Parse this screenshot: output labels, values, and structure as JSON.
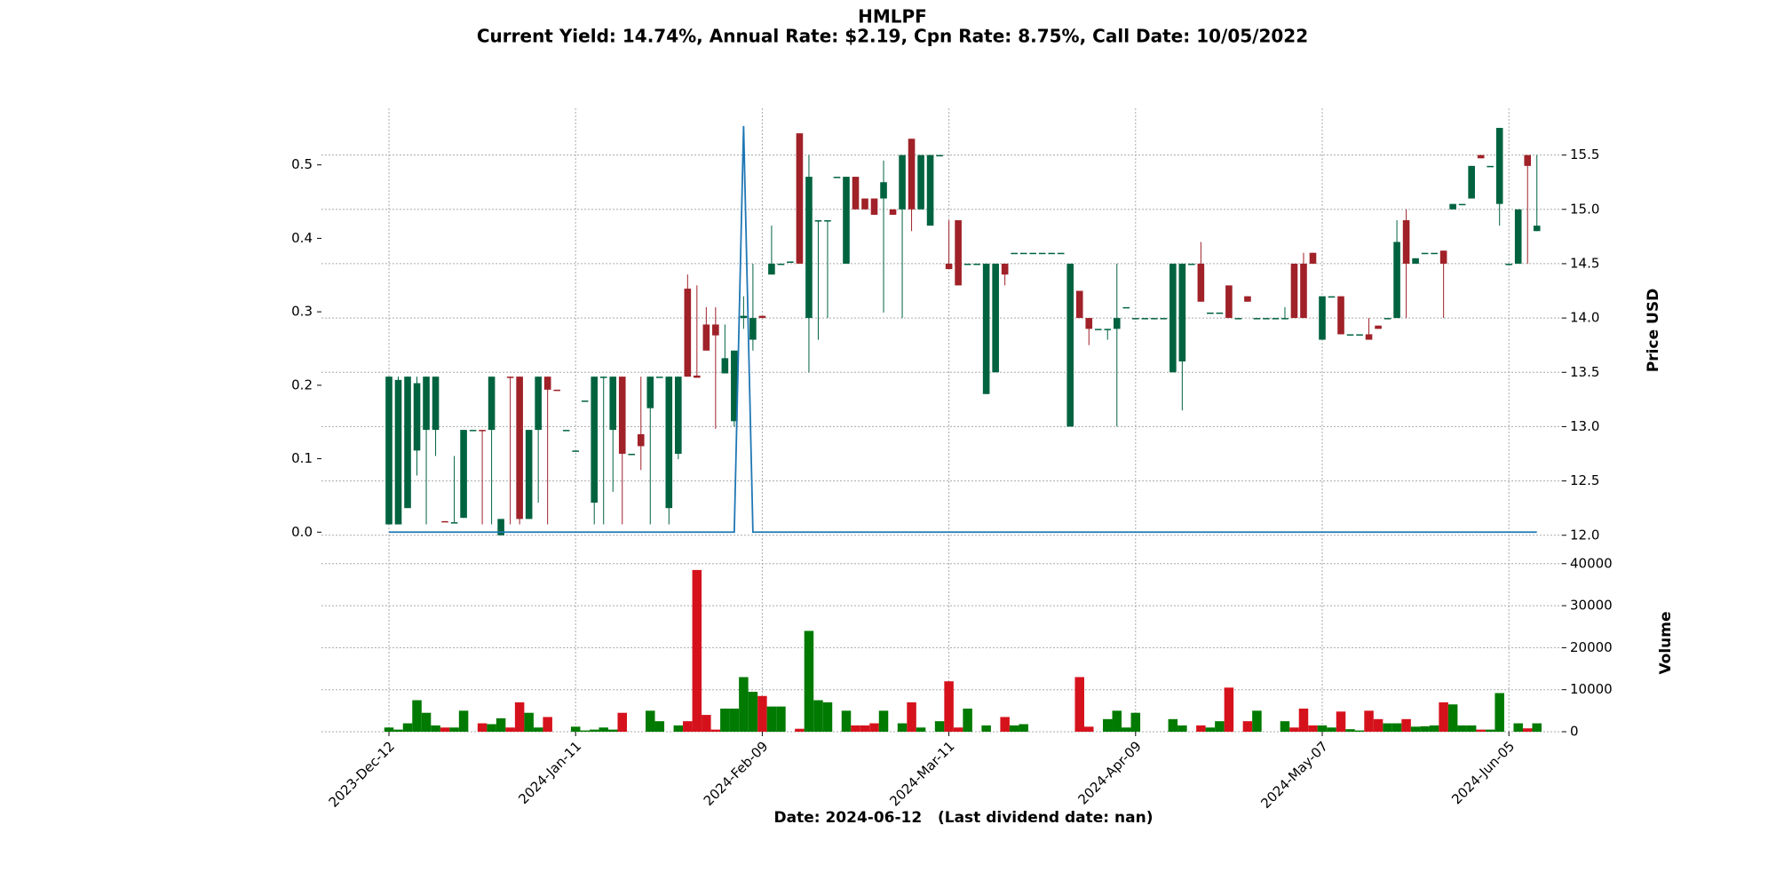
{
  "chart_data": {
    "type": "candlestick",
    "title": "HMLPF",
    "subtitle": "Current Yield: 14.74%, Annual Rate: $2.19, Cpn Rate: 8.75%, Call Date: 10/05/2022",
    "xlabel": "Date: 2024-06-12   (Last dividend date: nan)",
    "ylabel": "Price USD",
    "grid": true,
    "up_color": "#006340",
    "down_color": "#a02128",
    "categories": [
      "2023-Dec-12",
      null,
      null,
      null,
      null,
      null,
      null,
      null,
      null,
      null,
      null,
      null,
      null,
      null,
      null,
      null,
      null,
      null,
      null,
      null,
      "2024-Jan-11",
      null,
      null,
      null,
      null,
      null,
      null,
      null,
      null,
      null,
      null,
      null,
      null,
      null,
      null,
      null,
      null,
      null,
      null,
      null,
      "2024-Feb-09",
      null,
      null,
      null,
      null,
      null,
      null,
      null,
      null,
      null,
      null,
      null,
      null,
      null,
      null,
      null,
      null,
      null,
      null,
      null,
      "2024-Mar-11",
      null,
      null,
      null,
      null,
      null,
      null,
      null,
      null,
      null,
      null,
      null,
      null,
      null,
      null,
      null,
      null,
      null,
      null,
      null,
      "2024-Apr-09",
      null,
      null,
      null,
      null,
      null,
      null,
      null,
      null,
      null,
      null,
      null,
      null,
      null,
      null,
      null,
      null,
      null,
      null,
      null,
      "2024-May-07",
      null,
      null,
      null,
      null,
      null,
      null,
      null,
      null,
      null,
      null,
      null,
      null,
      null,
      null,
      null,
      null,
      null,
      null,
      null,
      "2024-Jun-05",
      null,
      null,
      null
    ],
    "open": [
      12.1,
      12.1,
      12.25,
      12.78,
      12.97,
      12.97,
      12.13,
      12.12,
      12.16,
      12.97,
      12.97,
      12.97,
      12.0,
      13.46,
      13.46,
      12.15,
      12.97,
      13.46,
      13.34,
      12.97,
      12.78,
      13.24,
      12.3,
      13.46,
      12.97,
      13.46,
      12.75,
      12.93,
      13.17,
      13.46,
      12.25,
      12.75,
      14.27,
      13.47,
      13.94,
      13.94,
      13.49,
      13.05,
      14.0,
      13.8,
      14.02,
      14.4,
      14.5,
      14.52,
      15.7,
      14.0,
      14.9,
      14.9,
      15.3,
      14.5,
      15.3,
      15.1,
      15.1,
      15.1,
      15.0,
      15.0,
      15.65,
      15.0,
      14.85,
      15.5,
      14.5,
      14.9,
      14.5,
      14.5,
      13.3,
      13.5,
      14.5,
      14.6,
      14.6,
      14.6,
      14.6,
      14.6,
      14.6,
      13.0,
      14.25,
      14.0,
      13.9,
      13.9,
      13.9,
      14.1,
      14.0,
      14.0,
      14.0,
      14.0,
      13.5,
      13.6,
      14.5,
      14.5,
      14.05,
      14.05,
      14.3,
      14.0,
      14.2,
      14.0,
      14.0,
      14.0,
      14.0,
      14.5,
      14.5,
      14.6,
      13.8,
      14.2,
      14.2,
      13.85,
      13.85,
      13.85,
      13.93,
      14.0,
      14.0,
      14.9,
      14.5,
      14.6,
      14.6,
      14.62,
      15.0,
      15.05,
      15.1,
      15.5,
      15.4,
      15.05,
      14.5,
      14.5,
      15.5,
      14.8
    ],
    "high": [
      13.46,
      13.46,
      13.46,
      13.46,
      13.46,
      13.46,
      12.13,
      12.73,
      12.97,
      12.97,
      12.97,
      13.46,
      12.15,
      13.46,
      13.46,
      12.97,
      13.46,
      13.46,
      13.34,
      12.97,
      12.78,
      13.24,
      13.46,
      13.46,
      13.46,
      13.46,
      12.75,
      13.46,
      13.46,
      13.46,
      13.46,
      13.46,
      14.4,
      14.3,
      14.1,
      14.1,
      13.94,
      13.7,
      14.2,
      14.5,
      14.02,
      14.85,
      14.5,
      14.52,
      15.7,
      15.5,
      14.9,
      14.9,
      15.3,
      15.3,
      15.3,
      15.1,
      15.1,
      15.45,
      15.0,
      15.5,
      15.65,
      15.5,
      15.5,
      15.5,
      14.9,
      14.9,
      14.5,
      14.5,
      14.5,
      14.5,
      14.5,
      14.6,
      14.6,
      14.6,
      14.6,
      14.6,
      14.6,
      14.5,
      14.25,
      14.0,
      13.9,
      13.9,
      14.5,
      14.1,
      14.0,
      14.0,
      14.0,
      14.0,
      14.5,
      14.5,
      14.5,
      14.7,
      14.05,
      14.05,
      14.3,
      14.0,
      14.2,
      14.0,
      14.0,
      14.0,
      14.1,
      14.5,
      14.6,
      14.6,
      14.2,
      14.2,
      14.2,
      13.85,
      13.85,
      14.0,
      13.93,
      14.0,
      14.9,
      15.0,
      14.55,
      14.6,
      14.6,
      14.62,
      15.05,
      15.05,
      15.4,
      15.5,
      15.4,
      15.75,
      14.5,
      15.0,
      15.5,
      15.5
    ],
    "low": [
      12.1,
      12.1,
      12.25,
      12.55,
      12.1,
      12.73,
      12.12,
      12.12,
      12.16,
      12.97,
      12.1,
      12.1,
      12.0,
      12.1,
      12.1,
      12.15,
      12.3,
      12.1,
      13.33,
      12.97,
      12.78,
      13.24,
      12.1,
      12.1,
      12.4,
      12.1,
      12.75,
      12.6,
      12.1,
      13.46,
      12.1,
      12.7,
      13.46,
      13.45,
      13.7,
      12.98,
      13.49,
      13.0,
      13.9,
      13.7,
      14.0,
      14.4,
      14.5,
      14.52,
      14.5,
      13.5,
      13.8,
      14.0,
      15.3,
      14.5,
      15.0,
      15.0,
      14.95,
      14.05,
      14.95,
      14.0,
      14.8,
      15.0,
      14.85,
      15.5,
      14.45,
      14.3,
      14.5,
      14.5,
      13.3,
      13.5,
      14.3,
      14.6,
      14.6,
      14.6,
      14.6,
      14.6,
      14.6,
      13.0,
      14.0,
      13.75,
      13.9,
      13.8,
      13.0,
      14.1,
      14.0,
      14.0,
      14.0,
      14.0,
      13.5,
      13.15,
      14.5,
      14.15,
      14.05,
      14.05,
      14.0,
      14.0,
      14.15,
      14.0,
      14.0,
      14.0,
      14.0,
      14.0,
      14.0,
      14.5,
      13.8,
      14.2,
      13.85,
      13.85,
      13.85,
      13.8,
      13.9,
      14.0,
      14.0,
      14.0,
      14.5,
      14.6,
      14.6,
      14.0,
      15.0,
      15.05,
      15.1,
      15.47,
      15.4,
      14.85,
      14.5,
      14.5,
      14.5,
      14.8
    ],
    "close": [
      13.46,
      13.43,
      13.46,
      13.4,
      13.46,
      13.46,
      12.12,
      12.12,
      12.97,
      12.97,
      12.96,
      13.46,
      12.15,
      13.45,
      12.15,
      12.97,
      13.46,
      13.34,
      13.33,
      12.97,
      12.78,
      13.24,
      13.46,
      13.46,
      13.46,
      12.75,
      12.75,
      12.82,
      13.46,
      13.46,
      13.46,
      13.46,
      13.46,
      13.45,
      13.7,
      13.84,
      13.63,
      13.7,
      14.02,
      14.0,
      14.0,
      14.5,
      14.5,
      14.52,
      14.5,
      15.3,
      14.9,
      14.9,
      15.3,
      15.3,
      15.0,
      15.0,
      14.95,
      15.25,
      14.95,
      15.5,
      15.0,
      15.5,
      15.5,
      15.5,
      14.45,
      14.3,
      14.5,
      14.5,
      14.5,
      14.5,
      14.4,
      14.6,
      14.6,
      14.6,
      14.6,
      14.6,
      14.6,
      14.5,
      14.0,
      13.9,
      13.9,
      13.9,
      14.0,
      14.1,
      14.0,
      14.0,
      14.0,
      14.0,
      14.5,
      14.5,
      14.5,
      14.15,
      14.05,
      14.05,
      14.0,
      14.0,
      14.15,
      14.0,
      14.0,
      14.0,
      14.0,
      14.0,
      14.0,
      14.5,
      14.2,
      14.2,
      13.85,
      13.85,
      13.85,
      13.8,
      13.9,
      14.0,
      14.7,
      14.5,
      14.55,
      14.6,
      14.6,
      14.5,
      15.05,
      15.05,
      15.4,
      15.47,
      15.4,
      15.75,
      14.5,
      15.0,
      15.4,
      14.85
    ],
    "ylim": [
      11.9,
      15.93
    ],
    "yticks": [
      {
        "value": 12,
        "label": "12.0"
      },
      12.5,
      {
        "value": 13,
        "label": "13.0"
      },
      13.5,
      {
        "value": 14,
        "label": "14.0"
      },
      14.5,
      {
        "value": 15,
        "label": "15.0"
      },
      15.5
    ],
    "line": {
      "color": "#1f77b4",
      "ylim": [
        -0.019,
        0.577
      ],
      "yticks": [
        {
          "value": 0,
          "label": "0.0"
        },
        0.1,
        0.2,
        0.3,
        0.4,
        0.5
      ],
      "values": [
        0,
        0,
        0,
        0,
        0,
        0,
        0,
        0,
        0,
        0,
        0,
        0,
        0,
        0,
        0,
        0,
        0,
        0,
        0,
        0,
        0,
        0,
        0,
        0,
        0,
        0,
        0,
        0,
        0,
        0,
        0,
        0,
        0,
        0,
        0,
        0,
        0,
        0,
        0.553,
        0,
        0,
        0,
        0,
        0,
        0,
        0,
        0,
        0,
        0,
        0,
        0,
        0,
        0,
        0,
        0,
        0,
        0,
        0,
        0,
        0,
        0,
        0,
        0,
        0,
        0,
        0,
        0,
        0,
        0,
        0,
        0,
        0,
        0,
        0,
        0,
        0,
        0,
        0,
        0,
        0,
        0,
        0,
        0,
        0,
        0,
        0,
        0,
        0,
        0,
        0,
        0,
        0,
        0,
        0,
        0,
        0,
        0,
        0,
        0,
        0,
        0,
        0,
        0,
        0,
        0,
        0,
        0,
        0,
        0,
        0,
        0,
        0,
        0,
        0,
        0,
        0,
        0,
        0,
        0,
        0,
        0,
        0,
        0,
        0
      ]
    },
    "volume": {
      "ylabel": "Volume",
      "up_color": "#007a00",
      "down_color": "#d5121c",
      "ylim": [
        0,
        42700
      ],
      "yticks": [
        0,
        10000,
        20000,
        30000,
        40000
      ],
      "values": [
        1000,
        500,
        2000,
        7500,
        4500,
        1500,
        1000,
        1000,
        5000,
        0,
        2000,
        1800,
        3200,
        1000,
        7000,
        4500,
        1000,
        3500,
        0,
        0,
        1200,
        300,
        500,
        1000,
        500,
        4500,
        0,
        0,
        5000,
        2500,
        0,
        1500,
        2500,
        38500,
        4000,
        500,
        5500,
        5500,
        13000,
        9500,
        8500,
        6000,
        6000,
        0,
        700,
        24000,
        7500,
        7000,
        0,
        5000,
        1500,
        1500,
        2000,
        5000,
        0,
        2000,
        7000,
        1000,
        0,
        2500,
        12000,
        1000,
        5500,
        0,
        1500,
        0,
        3500,
        1500,
        1800,
        0,
        0,
        0,
        0,
        0,
        13000,
        1200,
        0,
        3000,
        5000,
        1000,
        4500,
        0,
        0,
        0,
        3000,
        1500,
        0,
        1500,
        1000,
        2500,
        10500,
        0,
        2500,
        5000,
        0,
        0,
        2500,
        1000,
        5500,
        1500,
        1500,
        1000,
        4800,
        600,
        300,
        5000,
        3000,
        2000,
        2000,
        3000,
        1200,
        1300,
        1500,
        7000,
        6500,
        1500,
        1500,
        500,
        500,
        9200,
        0,
        2000,
        800,
        2000
      ]
    }
  }
}
